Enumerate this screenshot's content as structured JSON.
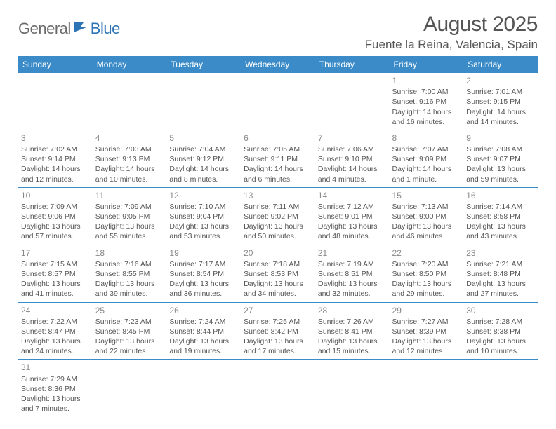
{
  "brand": {
    "part1": "General",
    "part2": "Blue"
  },
  "title": "August 2025",
  "location": "Fuente la Reina, Valencia, Spain",
  "colors": {
    "header_bg": "#3b8bc8",
    "header_text": "#ffffff",
    "border": "#3b8bc8",
    "body_text": "#555555",
    "daynum": "#888888",
    "brand_gray": "#6b6b6b",
    "brand_blue": "#2e75b6"
  },
  "dayHeaders": [
    "Sunday",
    "Monday",
    "Tuesday",
    "Wednesday",
    "Thursday",
    "Friday",
    "Saturday"
  ],
  "weeks": [
    [
      null,
      null,
      null,
      null,
      null,
      {
        "n": "1",
        "sr": "Sunrise: 7:00 AM",
        "ss": "Sunset: 9:16 PM",
        "d1": "Daylight: 14 hours",
        "d2": "and 16 minutes."
      },
      {
        "n": "2",
        "sr": "Sunrise: 7:01 AM",
        "ss": "Sunset: 9:15 PM",
        "d1": "Daylight: 14 hours",
        "d2": "and 14 minutes."
      }
    ],
    [
      {
        "n": "3",
        "sr": "Sunrise: 7:02 AM",
        "ss": "Sunset: 9:14 PM",
        "d1": "Daylight: 14 hours",
        "d2": "and 12 minutes."
      },
      {
        "n": "4",
        "sr": "Sunrise: 7:03 AM",
        "ss": "Sunset: 9:13 PM",
        "d1": "Daylight: 14 hours",
        "d2": "and 10 minutes."
      },
      {
        "n": "5",
        "sr": "Sunrise: 7:04 AM",
        "ss": "Sunset: 9:12 PM",
        "d1": "Daylight: 14 hours",
        "d2": "and 8 minutes."
      },
      {
        "n": "6",
        "sr": "Sunrise: 7:05 AM",
        "ss": "Sunset: 9:11 PM",
        "d1": "Daylight: 14 hours",
        "d2": "and 6 minutes."
      },
      {
        "n": "7",
        "sr": "Sunrise: 7:06 AM",
        "ss": "Sunset: 9:10 PM",
        "d1": "Daylight: 14 hours",
        "d2": "and 4 minutes."
      },
      {
        "n": "8",
        "sr": "Sunrise: 7:07 AM",
        "ss": "Sunset: 9:09 PM",
        "d1": "Daylight: 14 hours",
        "d2": "and 1 minute."
      },
      {
        "n": "9",
        "sr": "Sunrise: 7:08 AM",
        "ss": "Sunset: 9:07 PM",
        "d1": "Daylight: 13 hours",
        "d2": "and 59 minutes."
      }
    ],
    [
      {
        "n": "10",
        "sr": "Sunrise: 7:09 AM",
        "ss": "Sunset: 9:06 PM",
        "d1": "Daylight: 13 hours",
        "d2": "and 57 minutes."
      },
      {
        "n": "11",
        "sr": "Sunrise: 7:09 AM",
        "ss": "Sunset: 9:05 PM",
        "d1": "Daylight: 13 hours",
        "d2": "and 55 minutes."
      },
      {
        "n": "12",
        "sr": "Sunrise: 7:10 AM",
        "ss": "Sunset: 9:04 PM",
        "d1": "Daylight: 13 hours",
        "d2": "and 53 minutes."
      },
      {
        "n": "13",
        "sr": "Sunrise: 7:11 AM",
        "ss": "Sunset: 9:02 PM",
        "d1": "Daylight: 13 hours",
        "d2": "and 50 minutes."
      },
      {
        "n": "14",
        "sr": "Sunrise: 7:12 AM",
        "ss": "Sunset: 9:01 PM",
        "d1": "Daylight: 13 hours",
        "d2": "and 48 minutes."
      },
      {
        "n": "15",
        "sr": "Sunrise: 7:13 AM",
        "ss": "Sunset: 9:00 PM",
        "d1": "Daylight: 13 hours",
        "d2": "and 46 minutes."
      },
      {
        "n": "16",
        "sr": "Sunrise: 7:14 AM",
        "ss": "Sunset: 8:58 PM",
        "d1": "Daylight: 13 hours",
        "d2": "and 43 minutes."
      }
    ],
    [
      {
        "n": "17",
        "sr": "Sunrise: 7:15 AM",
        "ss": "Sunset: 8:57 PM",
        "d1": "Daylight: 13 hours",
        "d2": "and 41 minutes."
      },
      {
        "n": "18",
        "sr": "Sunrise: 7:16 AM",
        "ss": "Sunset: 8:55 PM",
        "d1": "Daylight: 13 hours",
        "d2": "and 39 minutes."
      },
      {
        "n": "19",
        "sr": "Sunrise: 7:17 AM",
        "ss": "Sunset: 8:54 PM",
        "d1": "Daylight: 13 hours",
        "d2": "and 36 minutes."
      },
      {
        "n": "20",
        "sr": "Sunrise: 7:18 AM",
        "ss": "Sunset: 8:53 PM",
        "d1": "Daylight: 13 hours",
        "d2": "and 34 minutes."
      },
      {
        "n": "21",
        "sr": "Sunrise: 7:19 AM",
        "ss": "Sunset: 8:51 PM",
        "d1": "Daylight: 13 hours",
        "d2": "and 32 minutes."
      },
      {
        "n": "22",
        "sr": "Sunrise: 7:20 AM",
        "ss": "Sunset: 8:50 PM",
        "d1": "Daylight: 13 hours",
        "d2": "and 29 minutes."
      },
      {
        "n": "23",
        "sr": "Sunrise: 7:21 AM",
        "ss": "Sunset: 8:48 PM",
        "d1": "Daylight: 13 hours",
        "d2": "and 27 minutes."
      }
    ],
    [
      {
        "n": "24",
        "sr": "Sunrise: 7:22 AM",
        "ss": "Sunset: 8:47 PM",
        "d1": "Daylight: 13 hours",
        "d2": "and 24 minutes."
      },
      {
        "n": "25",
        "sr": "Sunrise: 7:23 AM",
        "ss": "Sunset: 8:45 PM",
        "d1": "Daylight: 13 hours",
        "d2": "and 22 minutes."
      },
      {
        "n": "26",
        "sr": "Sunrise: 7:24 AM",
        "ss": "Sunset: 8:44 PM",
        "d1": "Daylight: 13 hours",
        "d2": "and 19 minutes."
      },
      {
        "n": "27",
        "sr": "Sunrise: 7:25 AM",
        "ss": "Sunset: 8:42 PM",
        "d1": "Daylight: 13 hours",
        "d2": "and 17 minutes."
      },
      {
        "n": "28",
        "sr": "Sunrise: 7:26 AM",
        "ss": "Sunset: 8:41 PM",
        "d1": "Daylight: 13 hours",
        "d2": "and 15 minutes."
      },
      {
        "n": "29",
        "sr": "Sunrise: 7:27 AM",
        "ss": "Sunset: 8:39 PM",
        "d1": "Daylight: 13 hours",
        "d2": "and 12 minutes."
      },
      {
        "n": "30",
        "sr": "Sunrise: 7:28 AM",
        "ss": "Sunset: 8:38 PM",
        "d1": "Daylight: 13 hours",
        "d2": "and 10 minutes."
      }
    ],
    [
      {
        "n": "31",
        "sr": "Sunrise: 7:29 AM",
        "ss": "Sunset: 8:36 PM",
        "d1": "Daylight: 13 hours",
        "d2": "and 7 minutes."
      },
      null,
      null,
      null,
      null,
      null,
      null
    ]
  ]
}
